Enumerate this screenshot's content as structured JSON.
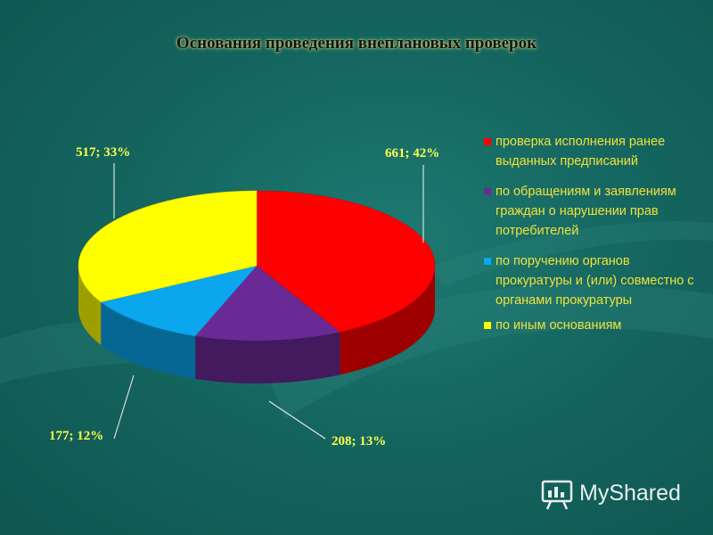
{
  "title": "Основания проведения внеплановых проверок",
  "chart_data": {
    "type": "pie",
    "title": "Основания проведения внеплановых проверок",
    "style": "3d",
    "legend_position": "right",
    "slices": [
      {
        "label": "проверка исполнения ранее выданных предписаний",
        "value": 661,
        "percent": 42,
        "data_label": "661; 42%",
        "color": "#ff0000"
      },
      {
        "label": "по обращениям и заявлениям граждан о нарушении прав потребителей",
        "value": 208,
        "percent": 13,
        "data_label": "208; 13%",
        "color": "#6a2a96"
      },
      {
        "label": "по поручению органов прокуратуры и (или) совместно с органами прокуратуры",
        "value": 177,
        "percent": 12,
        "data_label": "177; 12%",
        "color": "#0aa6ee"
      },
      {
        "label": "по иным основаниям",
        "value": 517,
        "percent": 33,
        "data_label": "517; 33%",
        "color": "#ffff00"
      }
    ]
  },
  "watermark": {
    "text": "MyShared",
    "icon": "presentation-board-icon"
  }
}
